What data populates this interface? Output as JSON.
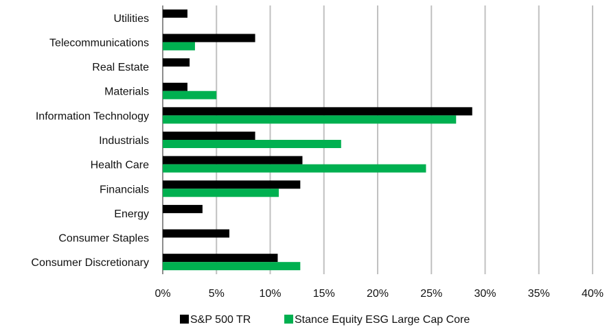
{
  "chart_data": {
    "type": "bar",
    "orientation": "horizontal",
    "categories": [
      "Utilities",
      "Telecommunications",
      "Real Estate",
      "Materials",
      "Information Technology",
      "Industrials",
      "Health Care",
      "Financials",
      "Energy",
      "Consumer Staples",
      "Consumer Discretionary"
    ],
    "series": [
      {
        "name": "S&P 500 TR",
        "color": "#000000",
        "values": [
          2.3,
          8.6,
          2.5,
          2.3,
          28.8,
          8.6,
          13.0,
          12.8,
          3.7,
          6.2,
          10.7
        ]
      },
      {
        "name": "Stance Equity ESG Large Cap Core",
        "color": "#00b050",
        "values": [
          null,
          3.0,
          null,
          5.0,
          27.3,
          16.6,
          24.5,
          10.8,
          null,
          null,
          12.8
        ]
      }
    ],
    "xlim": [
      0,
      40
    ],
    "x_ticks": [
      "0%",
      "5%",
      "10%",
      "15%",
      "20%",
      "25%",
      "30%",
      "35%",
      "40%"
    ],
    "grid": "vertical",
    "legend": "bottom",
    "title": "",
    "xlabel": "",
    "ylabel": ""
  }
}
